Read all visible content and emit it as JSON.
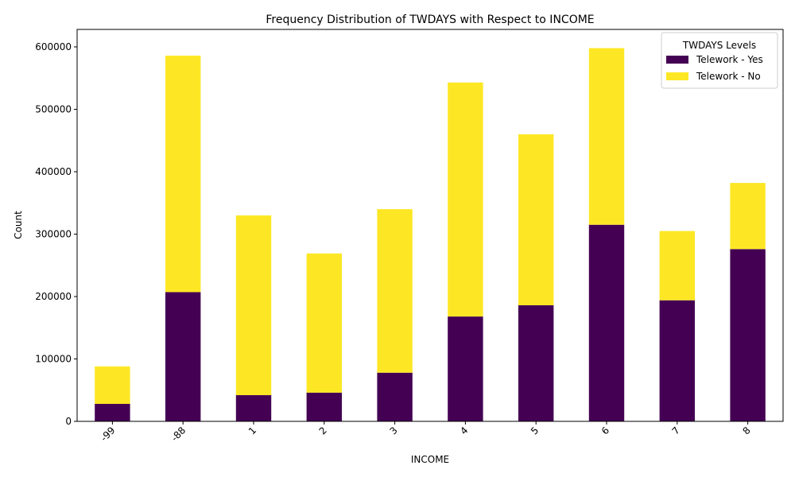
{
  "chart_data": {
    "type": "bar",
    "stacked": true,
    "title": "Frequency Distribution of TWDAYS with Respect to INCOME",
    "xlabel": "INCOME",
    "ylabel": "Count",
    "categories": [
      "-99",
      "-88",
      "1",
      "2",
      "3",
      "4",
      "5",
      "6",
      "7",
      "8"
    ],
    "series": [
      {
        "name": "Telework - Yes",
        "color": "#440154",
        "values": [
          28000,
          207000,
          42000,
          46000,
          78000,
          168000,
          186000,
          315000,
          194000,
          276000
        ]
      },
      {
        "name": "Telework - No",
        "color": "#fde725",
        "values": [
          60000,
          379000,
          288000,
          223000,
          262000,
          375000,
          274000,
          283000,
          111000,
          106000
        ]
      }
    ],
    "ylim": [
      0,
      628000
    ],
    "yticks": [
      0,
      100000,
      200000,
      300000,
      400000,
      500000,
      600000
    ],
    "grid": false,
    "legend": {
      "title": "TWDAYS Levels",
      "placement": "top-right"
    }
  }
}
